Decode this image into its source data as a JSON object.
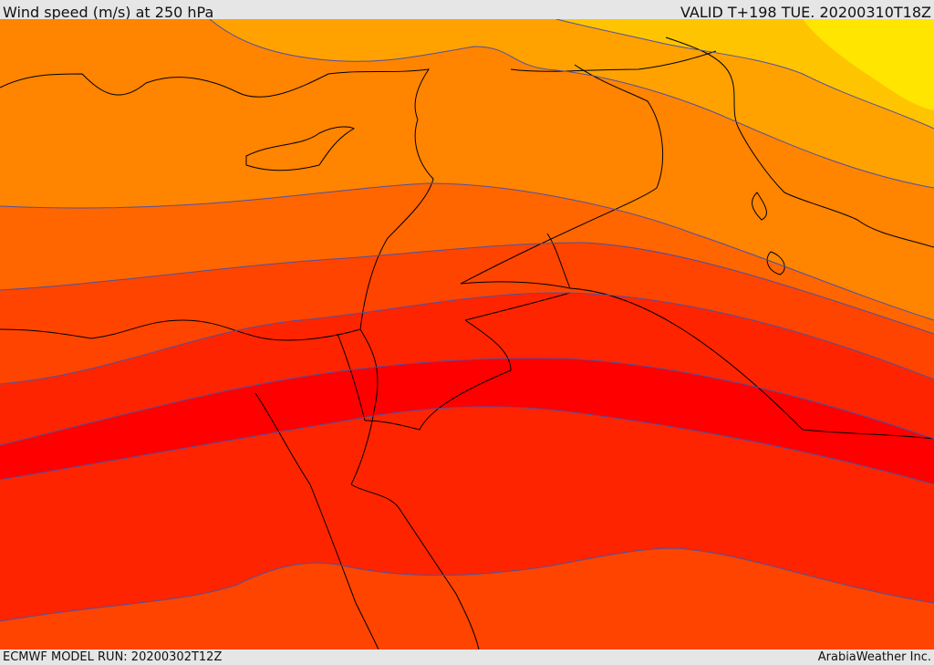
{
  "header": {
    "title": "Wind speed (m/s) at 250 hPa",
    "valid": "VALID T+198 TUE. 20200310T18Z"
  },
  "footer": {
    "model_run": "ECMWF MODEL RUN: 20200302T12Z",
    "credit": "ArabiaWeather Inc."
  },
  "map": {
    "field": "wind speed at 250 hPa",
    "colors": {
      "band_1": "#ffe500",
      "band_2": "#ffc400",
      "band_3": "#ffa200",
      "band_4": "#ff8400",
      "band_5": "#ff6600",
      "band_6": "#ff4400",
      "band_7": "#ff2400",
      "band_8": "#ff0000",
      "contour": "#5050a0",
      "coastline": "#000000"
    }
  }
}
